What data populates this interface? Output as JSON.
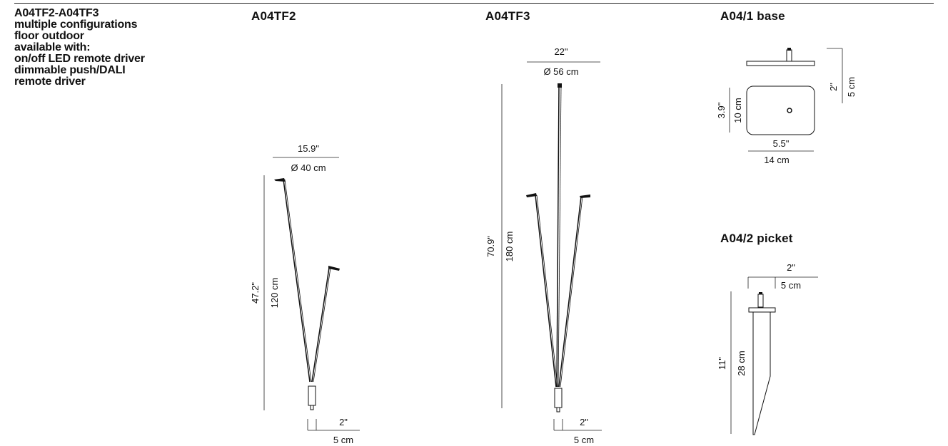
{
  "intro_lines": [
    "A04TF2-A04TF3",
    "multiple configurations",
    "floor outdoor",
    "available with:",
    "on/off LED remote driver",
    "dimmable push/DALI",
    "remote driver"
  ],
  "a04tf2": {
    "title": "A04TF2",
    "diameter_in": "15.9\"",
    "diameter_cm": "Ø 40 cm",
    "height_in": "47.2\"",
    "height_cm": "120 cm",
    "base_in": "2\"",
    "base_cm": "5 cm"
  },
  "a04tf3": {
    "title": "A04TF3",
    "diameter_in": "22\"",
    "diameter_cm": "Ø 56 cm",
    "height_in": "70.9\"",
    "height_cm": "180 cm",
    "base_in": "2\"",
    "base_cm": "5 cm"
  },
  "base_a041": {
    "title": "A04/1 base",
    "height_in": "2\"",
    "height_cm": "5 cm",
    "depth_in": "3.9\"",
    "depth_cm": "10 cm",
    "width_in": "5.5\"",
    "width_cm": "14 cm"
  },
  "picket_a042": {
    "title": "A04/2 picket",
    "width_in": "2\"",
    "width_cm": "5 cm",
    "height_in": "11\"",
    "height_cm": "28 cm"
  }
}
